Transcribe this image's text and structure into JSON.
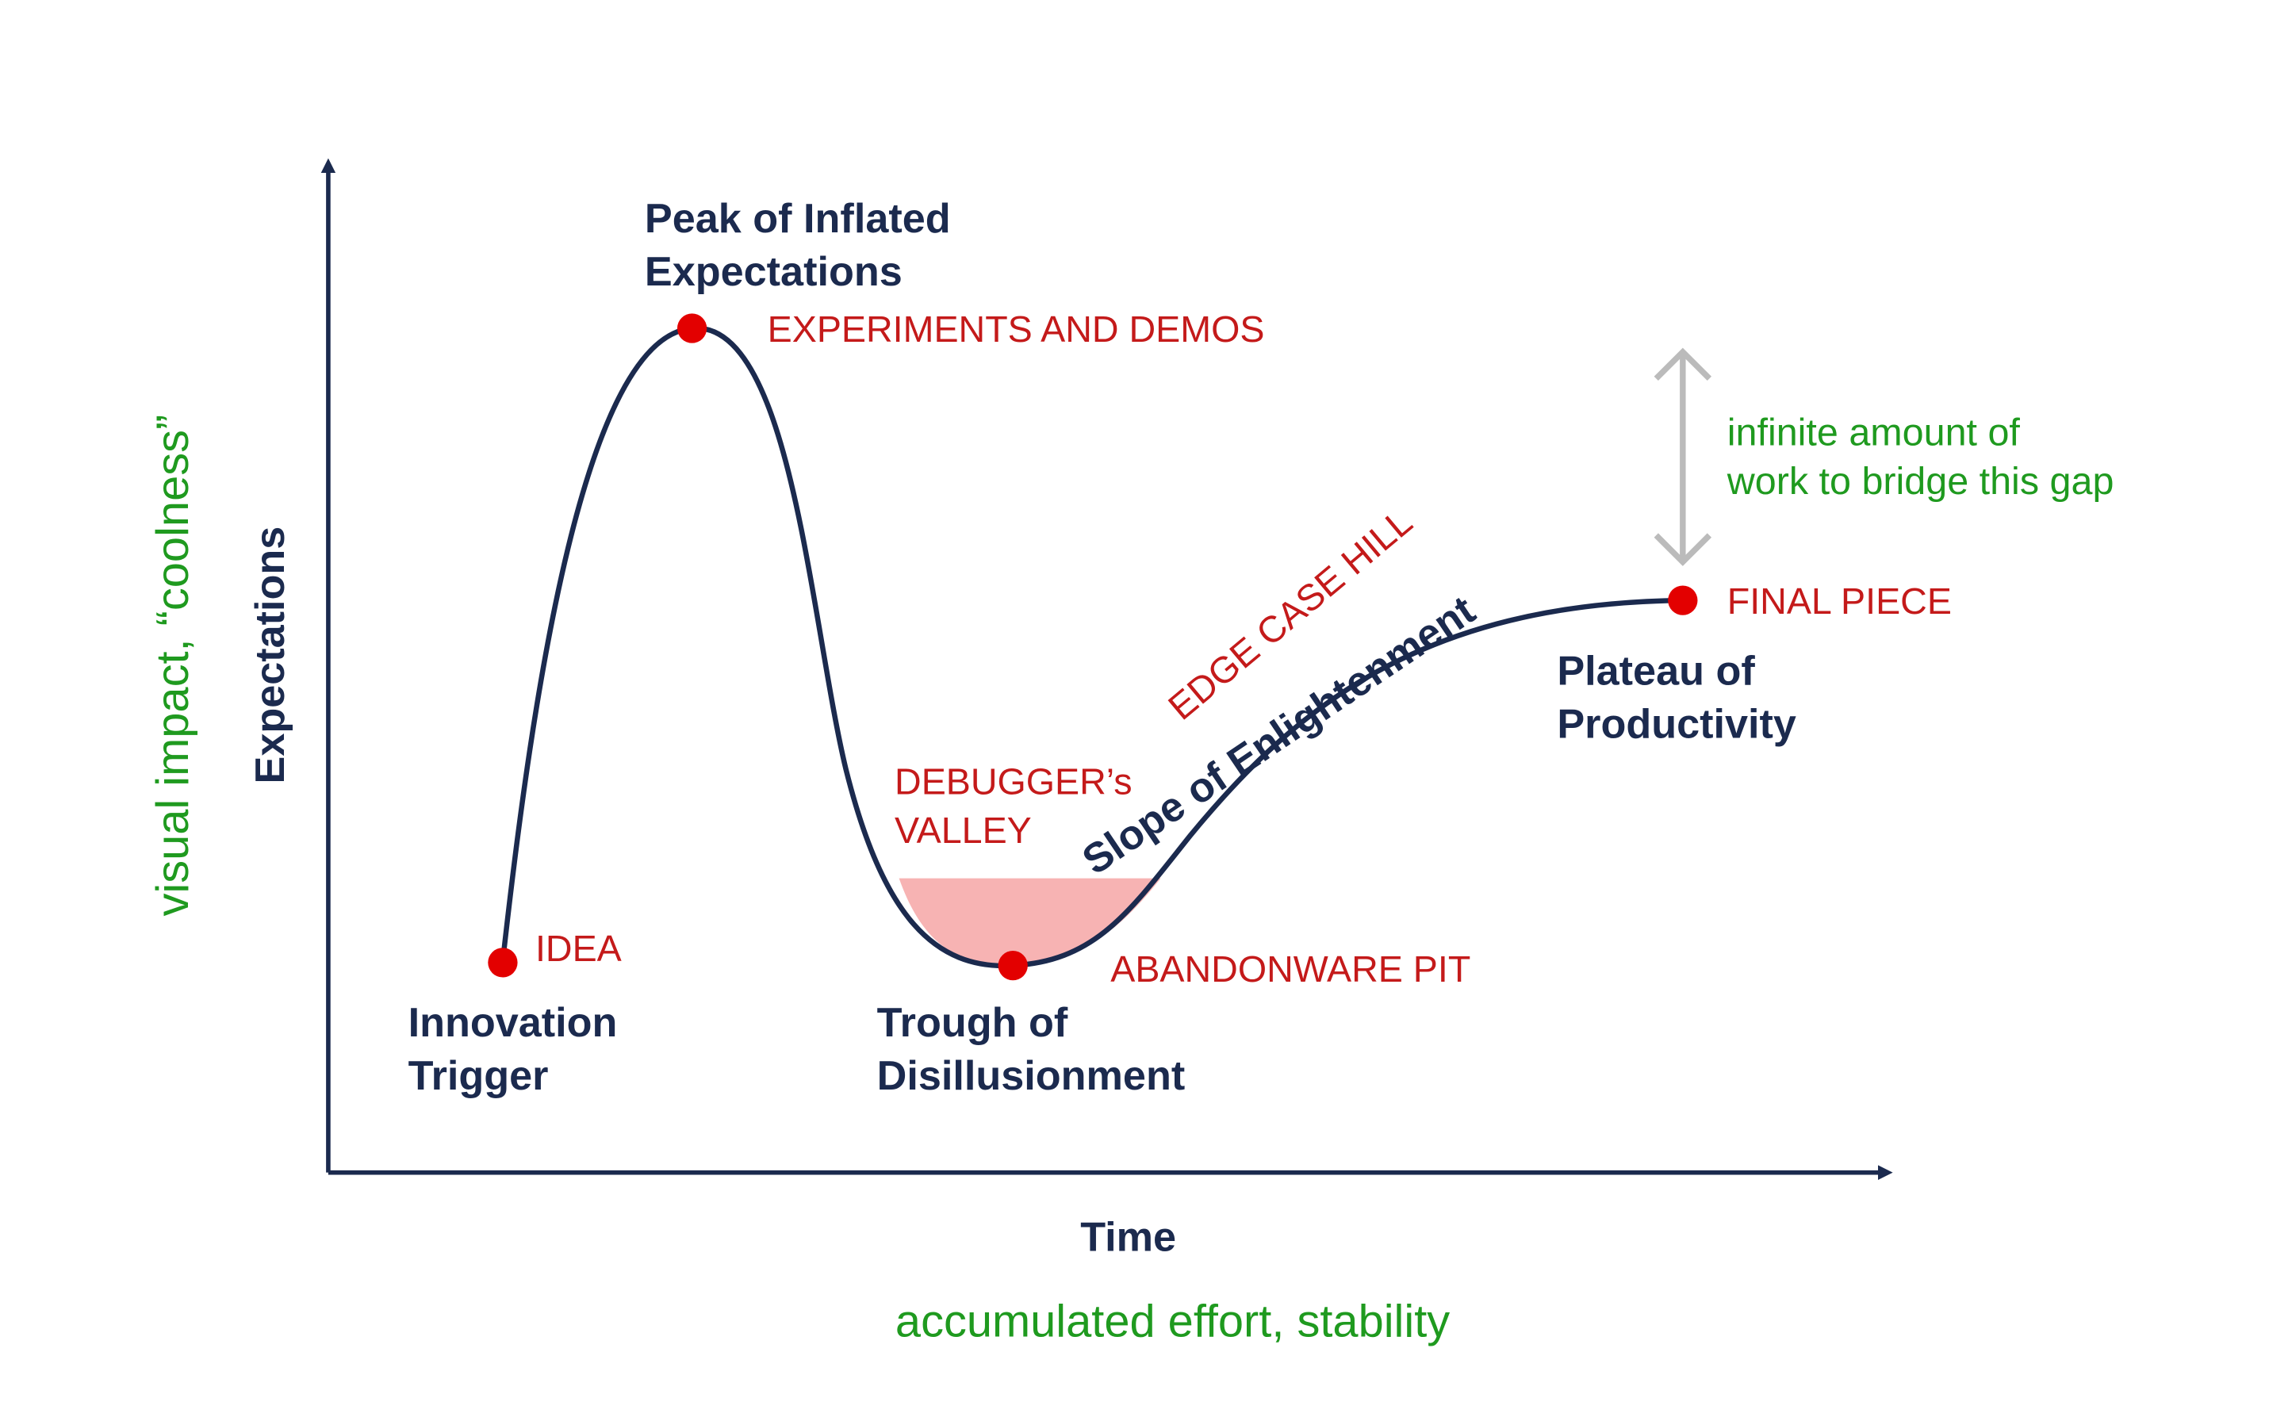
{
  "axes": {
    "y_label": "Expectations",
    "x_label": "Time"
  },
  "phases": {
    "innovation_trigger": [
      "Innovation",
      "Trigger"
    ],
    "peak": [
      "Peak of Inflated",
      "Expectations"
    ],
    "trough": [
      "Trough of",
      "Disillusionment"
    ],
    "slope": "Slope of Enlightenment",
    "plateau": [
      "Plateau of",
      "Productivity"
    ]
  },
  "annotations": {
    "idea": "IDEA",
    "experiments": "EXPERIMENTS AND DEMOS",
    "debuggers_valley": [
      "DEBUGGER’s",
      "VALLEY"
    ],
    "abandonware_pit": "ABANDONWARE PIT",
    "edge_case_hill": "EDGE CASE HILL",
    "final_piece": "FINAL PIECE",
    "gap": [
      "infinite amount of",
      "work to bridge this gap"
    ],
    "y_meaning": "visual impact, “coolness”",
    "x_meaning": "accumulated effort, stability"
  }
}
